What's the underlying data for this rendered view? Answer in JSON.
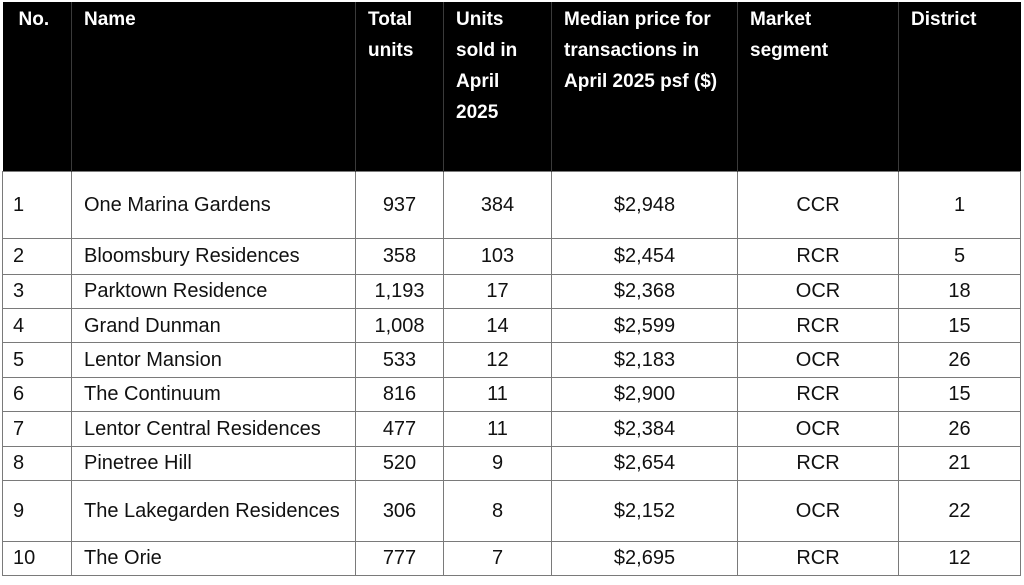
{
  "headers": {
    "no": "No.",
    "name": "Name",
    "total_units": "Total units",
    "units_sold": "Units sold in April 2025",
    "median_price": "Median price for transactions in April 2025 psf ($)",
    "market_segment": "Market segment",
    "district": "District"
  },
  "rows": [
    {
      "no": "1",
      "name": "One Marina Gardens",
      "total": "937",
      "sold": "384",
      "price": "$2,948",
      "segment": "CCR",
      "district": "1"
    },
    {
      "no": "2",
      "name": "Bloomsbury Residences",
      "total": "358",
      "sold": "103",
      "price": "$2,454",
      "segment": "RCR",
      "district": "5"
    },
    {
      "no": "3",
      "name": "Parktown Residence",
      "total": "1,193",
      "sold": "17",
      "price": "$2,368",
      "segment": "OCR",
      "district": "18"
    },
    {
      "no": "4",
      "name": "Grand Dunman",
      "total": "1,008",
      "sold": "14",
      "price": "$2,599",
      "segment": "RCR",
      "district": "15"
    },
    {
      "no": "5",
      "name": "Lentor Mansion",
      "total": "533",
      "sold": "12",
      "price": "$2,183",
      "segment": "OCR",
      "district": "26"
    },
    {
      "no": "6",
      "name": "The Continuum",
      "total": "816",
      "sold": "11",
      "price": "$2,900",
      "segment": "RCR",
      "district": "15"
    },
    {
      "no": "7",
      "name": "Lentor Central Residences",
      "total": "477",
      "sold": "11",
      "price": "$2,384",
      "segment": "OCR",
      "district": "26"
    },
    {
      "no": "8",
      "name": "Pinetree Hill",
      "total": "520",
      "sold": "9",
      "price": "$2,654",
      "segment": "RCR",
      "district": "21"
    },
    {
      "no": "9",
      "name": "The Lakegarden Residences",
      "total": "306",
      "sold": "8",
      "price": "$2,152",
      "segment": "OCR",
      "district": "22"
    },
    {
      "no": "10",
      "name": "The Orie",
      "total": "777",
      "sold": "7",
      "price": "$2,695",
      "segment": "RCR",
      "district": "12"
    }
  ]
}
